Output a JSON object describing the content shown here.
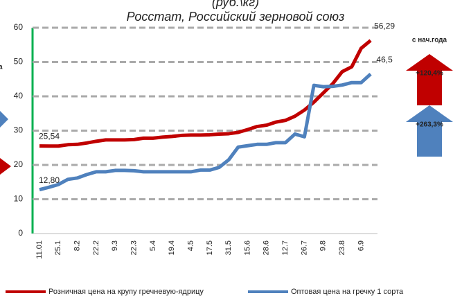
{
  "chart_data": {
    "type": "line",
    "title": "(руб.\\кг)",
    "subtitle": "Росстат, Российский зерновой союз",
    "categories": [
      "11.01",
      null,
      "25.1",
      null,
      "8.2",
      null,
      "22.2",
      null,
      "9.3",
      null,
      "22.3",
      null,
      "5.4",
      null,
      "19.4",
      null,
      "4.5",
      null,
      "17.5",
      null,
      "31.5",
      null,
      "15.6",
      null,
      "28.6",
      null,
      "12.7",
      null,
      "26.7",
      null,
      "9.8",
      null,
      "23.8",
      null,
      "6.9",
      null
    ],
    "series": [
      {
        "name": "Розничная цена на крупу гречневую-ядрицу",
        "color": "#c00000",
        "values": [
          25.54,
          25.5,
          25.5,
          25.9,
          26,
          26.4,
          26.9,
          27.3,
          27.3,
          27.3,
          27.4,
          27.8,
          27.8,
          28.1,
          28.3,
          28.6,
          28.7,
          28.7,
          28.8,
          29,
          29.1,
          29.5,
          30.3,
          31.2,
          31.6,
          32.5,
          33,
          34.2,
          36,
          38.3,
          41,
          43.7,
          47.2,
          48.6,
          54,
          56.29
        ],
        "value_labels": [
          "25,54",
          null,
          null,
          null,
          null,
          null,
          null,
          null,
          null,
          null,
          null,
          null,
          null,
          null,
          null,
          null,
          null,
          null,
          null,
          null,
          null,
          null,
          null,
          null,
          null,
          null,
          null,
          null,
          null,
          null,
          null,
          null,
          null,
          null,
          null,
          "56,29"
        ]
      },
      {
        "name": "Оптовая цена на гречку 1 сорта",
        "color": "#4f81bd",
        "values": [
          12.8,
          13.5,
          14.3,
          15.8,
          16.2,
          17.2,
          18,
          18,
          18.4,
          18.4,
          18.3,
          18,
          18,
          18,
          18,
          18,
          18,
          18.5,
          18.5,
          19.3,
          21.5,
          25.2,
          25.6,
          26,
          26,
          26.5,
          26.5,
          29,
          28.2,
          43.2,
          42.8,
          42.9,
          43.3,
          44,
          44,
          46.5
        ],
        "value_labels": [
          "12,80",
          null,
          null,
          null,
          null,
          null,
          null,
          null,
          null,
          null,
          null,
          null,
          null,
          null,
          null,
          null,
          null,
          null,
          null,
          null,
          null,
          null,
          null,
          null,
          null,
          null,
          null,
          null,
          null,
          null,
          null,
          null,
          null,
          null,
          null,
          "46,5"
        ]
      }
    ],
    "ylim": [
      0,
      60
    ],
    "yticks": [
      0,
      10,
      20,
      30,
      40,
      50,
      60
    ],
    "grid": true,
    "legend": "bottom",
    "side_title": "с нач.года",
    "side_badges": [
      {
        "label": "+120,4%",
        "color": "#c00000"
      },
      {
        "label": "+263,3%",
        "color": "#4f81bd"
      }
    ],
    "left_fragment": "а"
  }
}
